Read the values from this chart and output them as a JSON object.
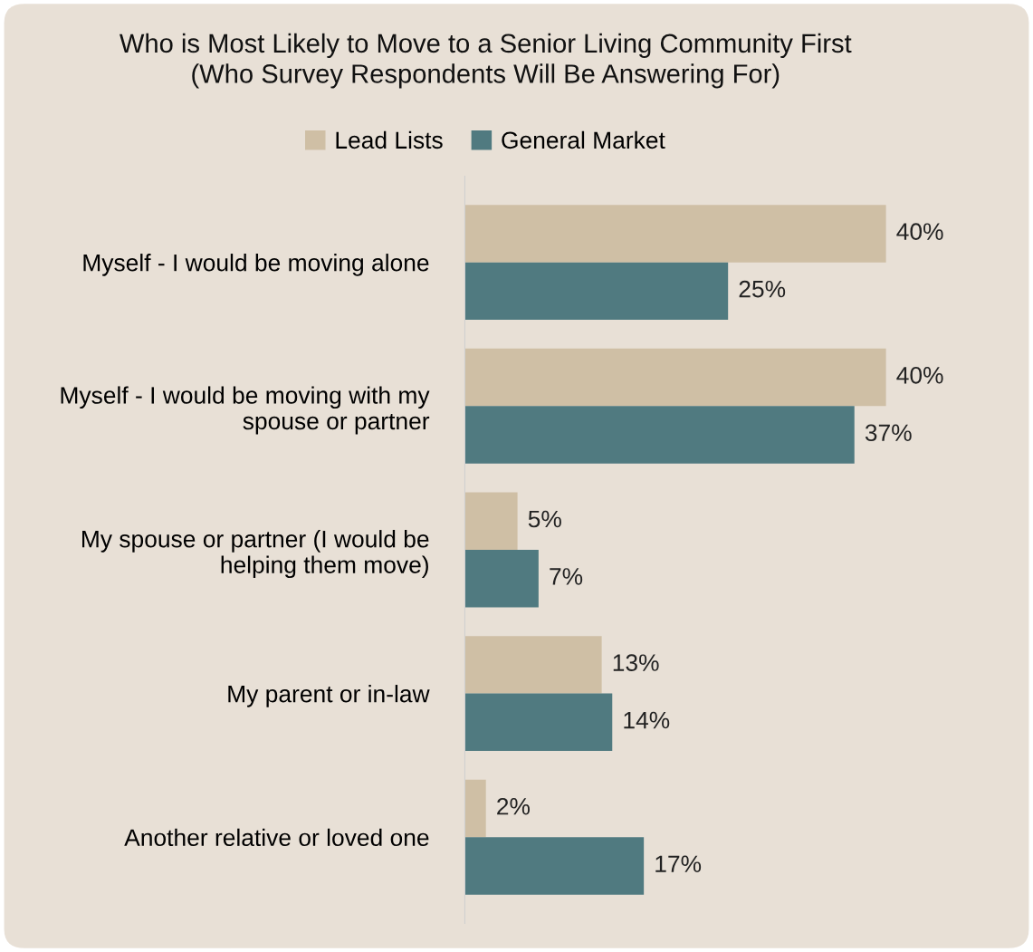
{
  "chart_data": {
    "type": "bar",
    "orientation": "horizontal",
    "title": "Who is Most Likely to Move to a Senior Living Community First\n(Who Survey Respondents Will Be Answering For)",
    "categories": [
      "Myself - I would be moving alone",
      "Myself - I would be moving with my\nspouse or partner",
      "My spouse or partner (I would be\nhelping them move)",
      "My parent or in-law",
      "Another relative or loved one"
    ],
    "series": [
      {
        "name": "Lead Lists",
        "color": "#cfbfa5",
        "values": [
          40,
          40,
          5,
          13,
          2
        ],
        "value_labels": [
          "40%",
          "40%",
          "5%",
          "13%",
          "2%"
        ]
      },
      {
        "name": "General Market",
        "color": "#507a80",
        "values": [
          25,
          37,
          7,
          14,
          17
        ],
        "value_labels": [
          "25%",
          "37%",
          "7%",
          "14%",
          "17%"
        ]
      }
    ],
    "legend": "top",
    "grid": false
  }
}
